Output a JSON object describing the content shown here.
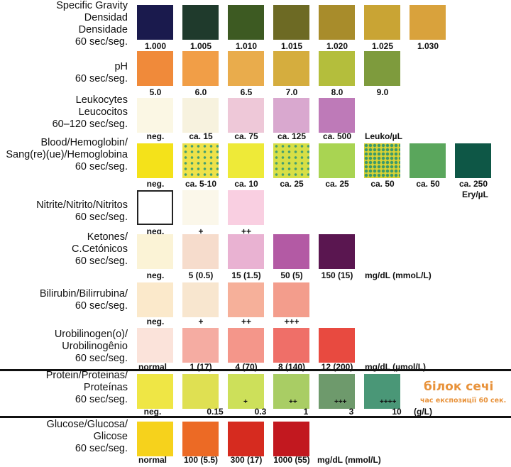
{
  "rows": [
    {
      "id": "specific-gravity",
      "label": "Specific Gravity\nDensidad\nDensidade\n60 sec/seg.",
      "swatches": [
        {
          "color": "#1a1a4d",
          "value": "1.000"
        },
        {
          "color": "#1f3a2c",
          "value": "1.005"
        },
        {
          "color": "#3d5a22",
          "value": "1.010"
        },
        {
          "color": "#6d6a24",
          "value": "1.015"
        },
        {
          "color": "#a88c2b",
          "value": "1.020"
        },
        {
          "color": "#c9a434",
          "value": "1.025"
        },
        {
          "color": "#d9a23c",
          "value": "1.030"
        }
      ],
      "unit": ""
    },
    {
      "id": "ph",
      "label": "pH\n60 sec/seg.",
      "swatches": [
        {
          "color": "#f08a3a",
          "value": "5.0"
        },
        {
          "color": "#f19e47",
          "value": "6.0"
        },
        {
          "color": "#e9ac4c",
          "value": "6.5"
        },
        {
          "color": "#d5ad3e",
          "value": "7.0"
        },
        {
          "color": "#b4be3c",
          "value": "8.0"
        },
        {
          "color": "#7e9b3d",
          "value": "9.0"
        }
      ],
      "unit": ""
    },
    {
      "id": "leukocytes",
      "label": "Leukocytes\nLeucocitos\n60–120 sec/seg.",
      "swatches": [
        {
          "color": "#fbf7e4",
          "value": "neg."
        },
        {
          "color": "#f7f2de",
          "value": "ca. 15"
        },
        {
          "color": "#eec8d8",
          "value": "ca. 75"
        },
        {
          "color": "#d9a8cf",
          "value": "ca. 125"
        },
        {
          "color": "#be7ab8",
          "value": "ca. 500"
        }
      ],
      "unit": "Leuko/µL"
    },
    {
      "id": "blood",
      "label": "Blood/Hemoglobin/\nSang(re)(ue)/Hemoglobina\n60 sec/seg.",
      "swatches": [
        {
          "color": "#f4e21a",
          "value": "neg."
        },
        {
          "color": "#eee24a",
          "value": "ca. 5-10"
        },
        {
          "color": "#eeea38",
          "value": "ca. 10"
        },
        {
          "color": "#d7df46",
          "value": "ca. 25"
        },
        {
          "color": "#a9d452",
          "value": "ca. 25"
        },
        {
          "color": "#d8d234",
          "value": "ca. 50"
        },
        {
          "color": "#5aa65c",
          "value": "ca. 50"
        },
        {
          "color": "#0e5746",
          "value": "ca. 250"
        }
      ],
      "unit": "Ery/µL"
    },
    {
      "id": "nitrite",
      "label": "Nitrite/Nitrito/Nitritos\n60 sec/seg.",
      "swatches": [
        {
          "color": "#ffffff",
          "value": "neg."
        },
        {
          "color": "#fbf7ea",
          "value": "+"
        },
        {
          "color": "#f9cfe1",
          "value": "++"
        }
      ],
      "unit": ""
    },
    {
      "id": "ketones",
      "label": "Ketones/\nC.Cetónicos\n60 sec/seg.",
      "swatches": [
        {
          "color": "#fbf3d6",
          "value": "neg."
        },
        {
          "color": "#f6dccc",
          "value": "5 (0.5)"
        },
        {
          "color": "#e9b2d2",
          "value": "15 (1.5)"
        },
        {
          "color": "#b35aa4",
          "value": "50 (5)"
        },
        {
          "color": "#5a1650",
          "value": "150 (15)"
        }
      ],
      "unit": "mg/dL (mmoL/L)"
    },
    {
      "id": "bilirubin",
      "label": "Bilirubin/Bilirrubina/\n60 sec/seg.",
      "swatches": [
        {
          "color": "#fbe9cb",
          "value": "neg."
        },
        {
          "color": "#f8e6cf",
          "value": "+"
        },
        {
          "color": "#f6b09a",
          "value": "++"
        },
        {
          "color": "#f39d8c",
          "value": "+++"
        }
      ],
      "unit": ""
    },
    {
      "id": "urobilinogen",
      "label": "Urobilinogen(o)/\nUrobilinogênio\n60 sec/seg.",
      "swatches": [
        {
          "color": "#fbe3da",
          "value": "normal"
        },
        {
          "color": "#f5aca2",
          "value": "1 (17)"
        },
        {
          "color": "#f4968a",
          "value": "4 (70)"
        },
        {
          "color": "#ef6f68",
          "value": "8 (140)"
        },
        {
          "color": "#e84a40",
          "value": "12 (200)"
        }
      ],
      "unit": "mg/dL (µmol/L)"
    },
    {
      "id": "protein",
      "label": "Protein/Proteinas/\nProteínas\n60 sec/seg.",
      "swatches": [
        {
          "color": "#efe645",
          "value": "neg."
        },
        {
          "color": "#dfe052",
          "value": "0.15"
        },
        {
          "color": "#cde05a",
          "value": "0.3",
          "mark": "+"
        },
        {
          "color": "#a9cd64",
          "value": "1",
          "mark": "++"
        },
        {
          "color": "#6e9a6c",
          "value": "3",
          "mark": "+++"
        },
        {
          "color": "#4a9777",
          "value": "10",
          "mark": "++++"
        }
      ],
      "unit": "(g/L)"
    },
    {
      "id": "glucose",
      "label": "Glucose/Glucosa/\nGlicose\n60 sec/seg.",
      "swatches": [
        {
          "color": "#f6d21c",
          "value": "normal"
        },
        {
          "color": "#ec6a25",
          "value": "100 (5.5)"
        },
        {
          "color": "#d62b1f",
          "value": "300 (17)"
        },
        {
          "color": "#c2181f",
          "value": "1000 (55)"
        }
      ],
      "unit": "mg/dL (mmol/L)"
    }
  ],
  "annotation": {
    "title": "білок сечі",
    "subtitle": "час експозиції 60 сек."
  }
}
